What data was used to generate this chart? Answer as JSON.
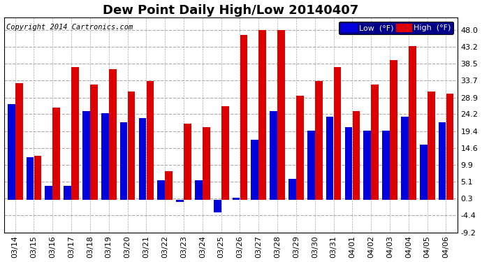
{
  "title": "Dew Point Daily High/Low 20140407",
  "copyright": "Copyright 2014 Cartronics.com",
  "legend_low": "Low  (°F)",
  "legend_high": "High  (°F)",
  "low_color": "#0000dd",
  "high_color": "#dd0000",
  "bg_color": "#ffffff",
  "plot_bg_color": "#ffffff",
  "ylim": [
    -9.2,
    51.5
  ],
  "yticks": [
    48.0,
    43.2,
    38.5,
    33.7,
    28.9,
    24.2,
    19.4,
    14.6,
    9.9,
    5.1,
    0.3,
    -4.4,
    -9.2
  ],
  "yticklabels": [
    "48.0",
    "43.2",
    "38.5",
    "33.7",
    "28.9",
    "24.2",
    "19.4",
    "14.6",
    "9.9",
    "5.1",
    "0.3",
    "-4.4",
    "-9.2"
  ],
  "dates": [
    "03/14",
    "03/15",
    "03/16",
    "03/17",
    "03/18",
    "03/19",
    "03/20",
    "03/21",
    "03/22",
    "03/23",
    "03/24",
    "03/25",
    "03/26",
    "03/27",
    "03/28",
    "03/29",
    "03/30",
    "03/31",
    "04/01",
    "04/02",
    "04/03",
    "04/04",
    "04/05",
    "04/06"
  ],
  "high_vals": [
    33.0,
    12.5,
    26.0,
    37.5,
    32.5,
    37.0,
    30.5,
    33.5,
    8.0,
    21.5,
    20.5,
    26.5,
    46.5,
    48.0,
    48.0,
    29.5,
    33.5,
    37.5,
    25.0,
    32.5,
    39.5,
    43.5,
    30.5,
    30.0
  ],
  "low_vals": [
    27.0,
    12.0,
    4.0,
    4.0,
    25.0,
    24.5,
    22.0,
    23.0,
    5.5,
    -0.5,
    5.5,
    -3.5,
    0.5,
    17.0,
    25.0,
    6.0,
    19.5,
    23.5,
    20.5,
    19.5,
    19.5,
    23.5,
    15.5,
    22.0
  ],
  "bar_width": 0.4,
  "bar_gap": 0.01,
  "title_fontsize": 13,
  "tick_fontsize": 8,
  "copyright_fontsize": 7.5
}
